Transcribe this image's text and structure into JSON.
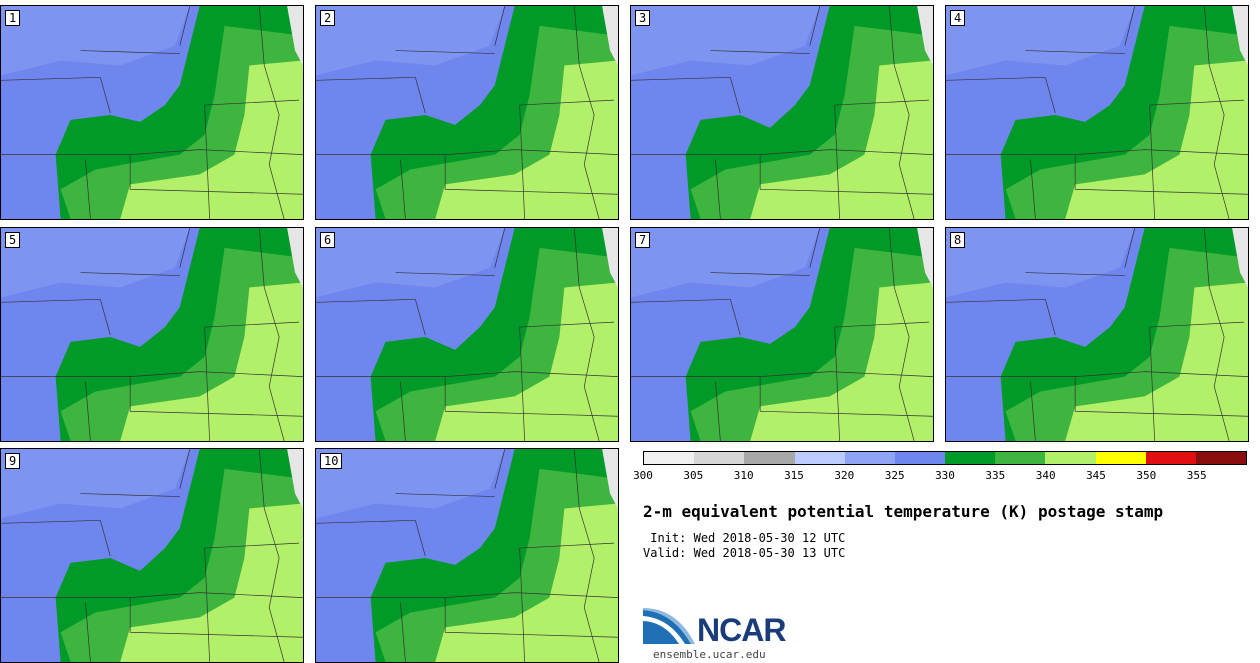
{
  "panels": [
    {
      "label": "1"
    },
    {
      "label": "2"
    },
    {
      "label": "3"
    },
    {
      "label": "4"
    },
    {
      "label": "5"
    },
    {
      "label": "6"
    },
    {
      "label": "7"
    },
    {
      "label": "8"
    },
    {
      "label": "9"
    },
    {
      "label": "10"
    }
  ],
  "colorbar": {
    "ticks": [
      "300",
      "305",
      "310",
      "315",
      "320",
      "325",
      "330",
      "335",
      "340",
      "345",
      "350",
      "355"
    ],
    "colors": [
      "#f0f0f0",
      "#d6d6d6",
      "#a8a8a8",
      "#bcccff",
      "#90a4f6",
      "#6f86ee",
      "#009a28",
      "#3db53f",
      "#b2f06a",
      "#ffff00",
      "#e01010",
      "#8a0e0e"
    ]
  },
  "title": "2-m equivalent potential temperature (K) postage stamp",
  "init": "Wed 2018-05-30 12 UTC",
  "valid": "Wed 2018-05-30 13 UTC",
  "init_label": "Init:",
  "valid_label": "Valid:",
  "logo_text": "NCAR",
  "website": "ensemble.ucar.edu",
  "map_colors": {
    "cold": "#6f86ee",
    "cool": "#8aa0f4",
    "dark_green": "#009a28",
    "mid_green": "#3db53f",
    "light_green": "#b2f06a",
    "border": "#333333"
  }
}
